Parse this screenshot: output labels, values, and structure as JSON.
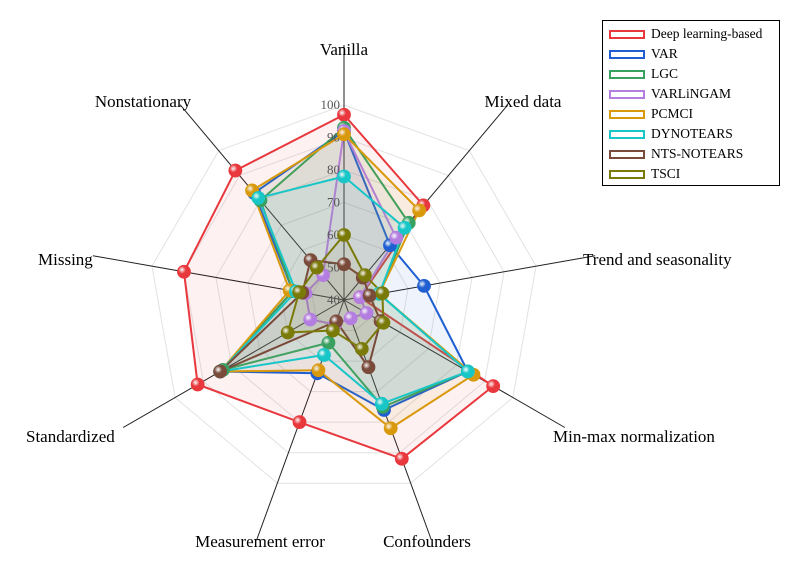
{
  "chart_data": {
    "type": "radar",
    "axes": [
      "Vanilla",
      "Mixed data",
      "Trend and seasonality",
      "Min-max normalization",
      "Confounders",
      "Measurement error",
      "Standardized",
      "Missing",
      "Nonstationary"
    ],
    "rlim": [
      40,
      100
    ],
    "ticks": [
      40,
      50,
      60,
      70,
      80,
      90,
      100
    ],
    "grid": true,
    "legend_position": "top-right",
    "series": [
      {
        "name": "Deep learning-based",
        "color": "#e8383d",
        "values": [
          97,
          78,
          45,
          93,
          92,
          80,
          92,
          90,
          92
        ]
      },
      {
        "name": "VAR",
        "color": "#1f5fd1",
        "values": [
          92,
          62,
          65,
          84,
          76,
          64,
          84,
          56,
          83
        ]
      },
      {
        "name": "LGC",
        "color": "#3aa060",
        "values": [
          93,
          71,
          51,
          84,
          75,
          54,
          83,
          56,
          80
        ]
      },
      {
        "name": "VARLiNGAM",
        "color": "#b47de0",
        "values": [
          92,
          65,
          45,
          48,
          46,
          48,
          52,
          52,
          50
        ]
      },
      {
        "name": "PCMCI",
        "color": "#d9990c",
        "values": [
          91,
          76,
          51,
          86,
          82,
          63,
          84,
          57,
          84
        ]
      },
      {
        "name": "DYNOTEARS",
        "color": "#18c6c8",
        "values": [
          78,
          69,
          51,
          84,
          74,
          58,
          84,
          55,
          81
        ]
      },
      {
        "name": "NTS-NOTEARS",
        "color": "#7a4a3a",
        "values": [
          51,
          49,
          48,
          53,
          62,
          47,
          84,
          53,
          56
        ]
      },
      {
        "name": "TSCI",
        "color": "#7a7a08",
        "values": [
          60,
          50,
          52,
          54,
          56,
          50,
          60,
          54,
          53
        ]
      }
    ]
  }
}
